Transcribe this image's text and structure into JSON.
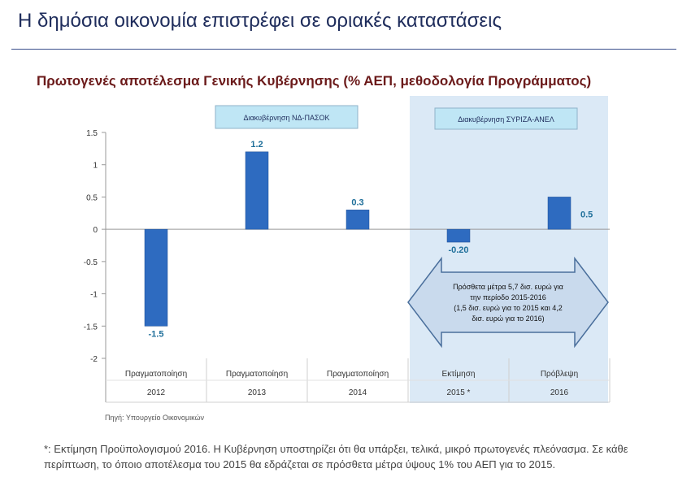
{
  "slide_title": "Η δημόσια οικονομία επιστρέφει σε οριακές καταστάσεις",
  "source": "Πηγή: Υπουργείο Οικονομικών",
  "footnote": "*: Εκτίμηση Προϋπολογισμού 2016. Η Κυβέρνηση υποστηρίζει ότι θα υπάρξει, τελικά, μικρό πρωτογενές πλεόνασμα. Σε κάθε περίπτωση, το όποιο αποτέλεσμα του 2015 θα εδράζεται σε πρόσθετα μέτρα ύψους 1% του ΑΕΠ για το 2015.",
  "colors": {
    "bar": "#2e6bc0",
    "panel": "#dbe9f6",
    "label_box": "#bfe6f5",
    "arrow_fill": "#c9daed",
    "arrow_stroke": "#4a6f9c",
    "title_dark_blue": "#1f2d5c",
    "chart_title": "#6b1a1a",
    "value_label": "#1f6f9a"
  },
  "chart_data": {
    "type": "bar",
    "title": "Πρωτογενές αποτέλεσμα Γενικής Κυβέρνησης (% ΑΕΠ, μεθοδολογία Προγράμματος)",
    "categories": [
      "2012",
      "2013",
      "2014",
      "2015 *",
      "2016"
    ],
    "category_status": [
      "Πραγματοποίηση",
      "Πραγματοποίηση",
      "Πραγματοποίηση",
      "Εκτίμηση",
      "Πρόβλεψη"
    ],
    "values": [
      -1.5,
      1.2,
      0.3,
      -0.2,
      0.5
    ],
    "value_labels": [
      "-1.5",
      "1.2",
      "0.3",
      "-0.20",
      "0.5"
    ],
    "ylim": [
      -2,
      1.5
    ],
    "yticks": [
      "1.5",
      "1",
      "0.5",
      "0",
      "-0.5",
      "-1",
      "-1.5",
      "-2"
    ],
    "ytick_values": [
      1.5,
      1,
      0.5,
      0,
      -0.5,
      -1,
      -1.5,
      -2
    ],
    "annotations": {
      "nd_pasok": "Διακυβέρνηση ΝΔ-ΠΑΣΟΚ",
      "syriza_anel": "Διακυβέρνηση ΣΥΡΙΖΑ-ΑΝΕΛ",
      "arrow_lines": [
        "Πρόσθετα μέτρα 5,7 δισ. ευρώ για",
        "την περίοδο 2015-2016",
        "(1,5 δισ. ευρώ για το 2015 και 4,2",
        "δισ. ευρώ για το 2016)"
      ]
    },
    "grid": false,
    "legend": "none"
  }
}
